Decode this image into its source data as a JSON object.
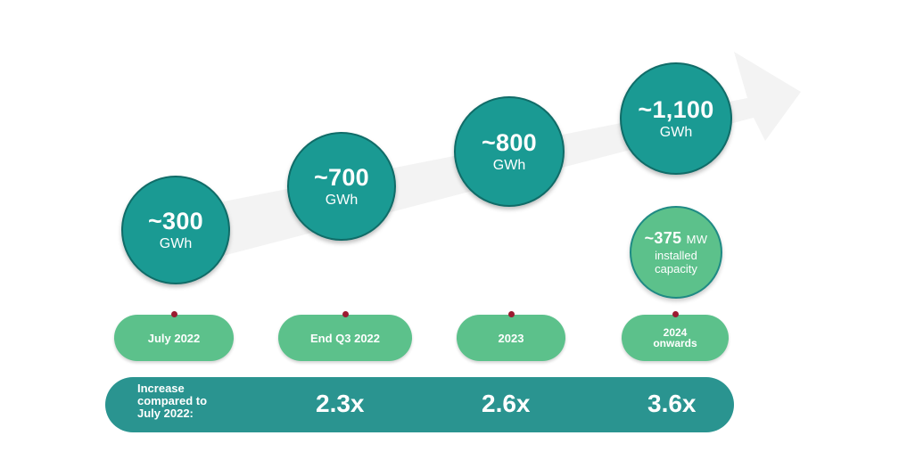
{
  "colors": {
    "circle": "#1a9a93",
    "capacity_circle": "#5cc18b",
    "pill": "#5cc18b",
    "bar": "#2a9490",
    "dot": "#9b1b30",
    "arrow": "#f3f3f3"
  },
  "milestones": [
    {
      "value": "~300",
      "unit": "GWh",
      "period": "July 2022"
    },
    {
      "value": "~700",
      "unit": "GWh",
      "period": "End Q3 2022"
    },
    {
      "value": "~800",
      "unit": "GWh",
      "period": "2023"
    },
    {
      "value": "~1,100",
      "unit": "GWh",
      "period_line1": "2024",
      "period_line2": "onwards"
    }
  ],
  "capacity": {
    "value": "~375",
    "unit": "MW",
    "line1": "installed",
    "line2": "capacity"
  },
  "comparison": {
    "label": "Increase\ncompared to\nJuly 2022:",
    "multipliers": [
      "2.3x",
      "2.6x",
      "3.6x"
    ]
  }
}
